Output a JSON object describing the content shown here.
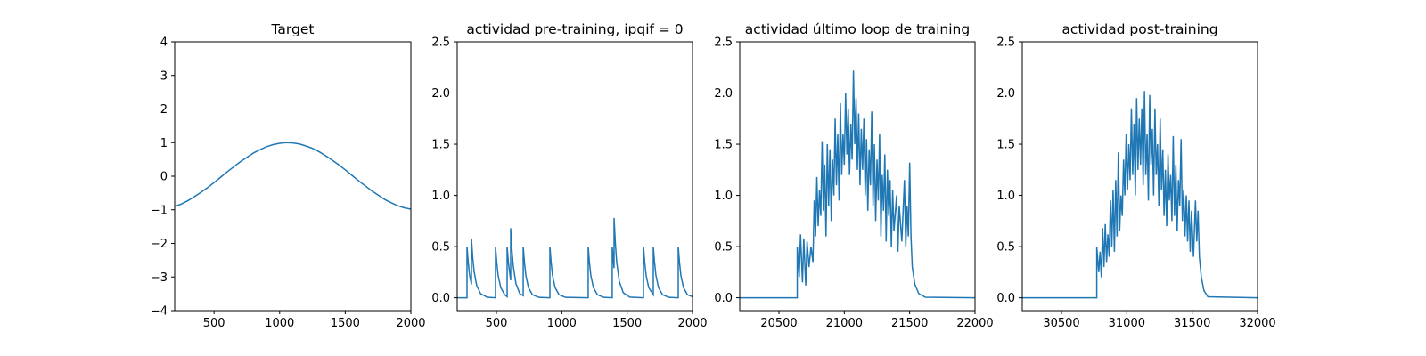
{
  "chart_data": [
    {
      "type": "line",
      "title": "Target",
      "color": "#1f77b4",
      "x": [
        200,
        250,
        300,
        350,
        400,
        450,
        500,
        550,
        600,
        650,
        700,
        750,
        800,
        850,
        900,
        950,
        1000,
        1050,
        1100,
        1150,
        1200,
        1250,
        1300,
        1350,
        1400,
        1450,
        1500,
        1550,
        1600,
        1650,
        1700,
        1750,
        1800,
        1850,
        1900,
        1950,
        2000
      ],
      "values": [
        -0.9,
        -0.83,
        -0.73,
        -0.61,
        -0.48,
        -0.34,
        -0.19,
        -0.03,
        0.13,
        0.28,
        0.43,
        0.56,
        0.69,
        0.79,
        0.88,
        0.94,
        0.98,
        1.0,
        0.99,
        0.96,
        0.9,
        0.83,
        0.73,
        0.61,
        0.48,
        0.34,
        0.19,
        0.03,
        -0.13,
        -0.28,
        -0.43,
        -0.56,
        -0.69,
        -0.79,
        -0.88,
        -0.94,
        -0.98
      ],
      "xlim": [
        200,
        2000
      ],
      "xticks": [
        500,
        1000,
        1500,
        2000
      ],
      "ylim": [
        -4,
        4
      ],
      "yticks": [
        {
          "value": -4,
          "label": "−4"
        },
        {
          "value": -3,
          "label": "−3"
        },
        {
          "value": -2,
          "label": "−2"
        },
        {
          "value": -1,
          "label": "−1"
        },
        0,
        1,
        2,
        3,
        4
      ]
    },
    {
      "type": "line",
      "title": "actividad pre-training, ipqif = 0",
      "color": "#1f77b4",
      "x": [
        200,
        275,
        275,
        285,
        295,
        309,
        309,
        319,
        329,
        349,
        379,
        429,
        493,
        493,
        503,
        513,
        533,
        563,
        582,
        582,
        592,
        609,
        609,
        619,
        629,
        649,
        679,
        705,
        705,
        715,
        725,
        745,
        775,
        825,
        909,
        909,
        919,
        929,
        949,
        979,
        1029,
        1202,
        1202,
        1212,
        1222,
        1242,
        1272,
        1322,
        1386,
        1386,
        1400,
        1400,
        1410,
        1420,
        1440,
        1470,
        1520,
        1625,
        1625,
        1635,
        1645,
        1665,
        1700,
        1700,
        1710,
        1720,
        1740,
        1770,
        1820,
        1891,
        1891,
        1901,
        1911,
        1931,
        1961,
        2000
      ],
      "values": [
        0,
        0,
        0.5,
        0.34,
        0.22,
        0.13,
        0.58,
        0.39,
        0.26,
        0.12,
        0.04,
        0.005,
        0,
        0.5,
        0.34,
        0.22,
        0.1,
        0.03,
        0.01,
        0.5,
        0.34,
        0.17,
        0.68,
        0.46,
        0.31,
        0.14,
        0.04,
        0.02,
        0.5,
        0.34,
        0.22,
        0.1,
        0.03,
        0.004,
        0,
        0.5,
        0.34,
        0.22,
        0.1,
        0.03,
        0.004,
        0,
        0.5,
        0.34,
        0.22,
        0.1,
        0.03,
        0.004,
        0,
        0.5,
        0.29,
        0.78,
        0.53,
        0.35,
        0.16,
        0.05,
        0.006,
        0,
        0.5,
        0.34,
        0.22,
        0.1,
        0.03,
        0.5,
        0.34,
        0.22,
        0.1,
        0.03,
        0.004,
        0,
        0.5,
        0.34,
        0.22,
        0.1,
        0.03,
        0.01
      ],
      "xlim": [
        200,
        2000
      ],
      "xticks": [
        500,
        1000,
        1500,
        2000
      ],
      "ylim": [
        -0.125,
        2.5
      ],
      "yticks": [
        {
          "value": 0,
          "label": "0.0"
        },
        0.5,
        {
          "value": 1,
          "label": "1.0"
        },
        1.5,
        {
          "value": 2,
          "label": "2.0"
        },
        2.5
      ]
    },
    {
      "type": "line",
      "title": "actividad último loop de training",
      "color": "#1f77b4",
      "x": [
        20200,
        20640,
        20640,
        20655,
        20665,
        20680,
        20690,
        20705,
        20715,
        20730,
        20745,
        20760,
        20770,
        20780,
        20790,
        20800,
        20810,
        20820,
        20830,
        20840,
        20850,
        20860,
        20870,
        20880,
        20890,
        20900,
        20910,
        20920,
        20930,
        20940,
        20950,
        20960,
        20970,
        20980,
        20990,
        21000,
        21010,
        21020,
        21030,
        21040,
        21050,
        21060,
        21070,
        21080,
        21090,
        21100,
        21110,
        21120,
        21130,
        21140,
        21150,
        21160,
        21170,
        21180,
        21190,
        21200,
        21210,
        21220,
        21230,
        21240,
        21250,
        21260,
        21270,
        21280,
        21290,
        21300,
        21310,
        21320,
        21330,
        21340,
        21350,
        21360,
        21370,
        21380,
        21400,
        21410,
        21420,
        21440,
        21460,
        21470,
        21480,
        21490,
        21500,
        21510,
        21520,
        21540,
        21570,
        21620,
        22000
      ],
      "values": [
        0,
        0,
        0.5,
        0.2,
        0.62,
        0.15,
        0.58,
        0.12,
        0.55,
        0.3,
        0.5,
        0.35,
        0.95,
        0.6,
        1.18,
        0.7,
        1.05,
        0.8,
        1.53,
        0.85,
        1.3,
        0.6,
        1.5,
        0.9,
        1.45,
        0.75,
        1.35,
        1.0,
        1.75,
        1.1,
        1.6,
        0.95,
        1.9,
        1.2,
        1.6,
        1.3,
        2.0,
        1.4,
        1.85,
        1.2,
        1.7,
        1.35,
        2.22,
        1.5,
        1.95,
        1.25,
        1.8,
        1.1,
        1.65,
        1.25,
        1.75,
        1.0,
        1.55,
        0.85,
        1.45,
        1.1,
        1.82,
        0.9,
        1.5,
        0.75,
        1.35,
        0.95,
        1.6,
        0.6,
        1.2,
        0.85,
        1.4,
        0.55,
        1.25,
        0.8,
        1.15,
        0.5,
        1.05,
        0.65,
        1.0,
        0.45,
        0.9,
        0.55,
        1.15,
        0.5,
        0.9,
        0.6,
        1.32,
        0.6,
        0.3,
        0.13,
        0.04,
        0.005,
        0
      ],
      "xlim": [
        20200,
        22000
      ],
      "xticks": [
        20500,
        21000,
        21500,
        22000
      ],
      "ylim": [
        -0.125,
        2.5
      ],
      "yticks": [
        {
          "value": 0,
          "label": "0.0"
        },
        0.5,
        {
          "value": 1,
          "label": "1.0"
        },
        1.5,
        {
          "value": 2,
          "label": "2.0"
        },
        2.5
      ]
    },
    {
      "type": "line",
      "title": "actividad post-training",
      "color": "#1f77b4",
      "x": [
        30200,
        30770,
        30770,
        30785,
        30795,
        30805,
        30815,
        30825,
        30835,
        30845,
        30855,
        30865,
        30875,
        30885,
        30895,
        30905,
        30915,
        30925,
        30935,
        30945,
        30955,
        30965,
        30975,
        30985,
        30995,
        31005,
        31015,
        31025,
        31035,
        31045,
        31055,
        31065,
        31075,
        31085,
        31095,
        31105,
        31115,
        31125,
        31135,
        31145,
        31155,
        31165,
        31175,
        31185,
        31195,
        31205,
        31215,
        31225,
        31235,
        31245,
        31255,
        31265,
        31275,
        31285,
        31295,
        31305,
        31315,
        31325,
        31335,
        31345,
        31355,
        31365,
        31375,
        31385,
        31395,
        31405,
        31415,
        31425,
        31435,
        31445,
        31455,
        31465,
        31475,
        31485,
        31495,
        31510,
        31525,
        31535,
        31545,
        31555,
        31570,
        31590,
        31620,
        32000
      ],
      "values": [
        0,
        0,
        0.5,
        0.25,
        0.45,
        0.2,
        0.68,
        0.3,
        0.72,
        0.35,
        0.62,
        0.4,
        0.95,
        0.5,
        1.05,
        0.45,
        1.15,
        0.6,
        1.42,
        0.65,
        1.0,
        0.8,
        1.35,
        1.0,
        1.6,
        1.05,
        1.5,
        1.15,
        1.85,
        1.2,
        1.7,
        1.0,
        1.95,
        1.25,
        1.75,
        1.3,
        1.85,
        1.1,
        2.02,
        1.2,
        1.6,
        0.95,
        1.98,
        1.3,
        1.65,
        1.0,
        1.85,
        1.2,
        1.5,
        0.9,
        1.75,
        1.05,
        1.45,
        0.8,
        1.25,
        0.7,
        1.4,
        0.95,
        1.2,
        0.75,
        1.58,
        0.8,
        1.3,
        0.65,
        1.15,
        0.9,
        1.55,
        0.75,
        1.05,
        0.6,
        1.0,
        0.55,
        0.95,
        0.45,
        0.85,
        0.4,
        0.95,
        0.55,
        0.85,
        0.4,
        0.2,
        0.07,
        0.01,
        0
      ],
      "xlim": [
        30200,
        32000
      ],
      "xticks": [
        30500,
        31000,
        31500,
        32000
      ],
      "ylim": [
        -0.125,
        2.5
      ],
      "yticks": [
        {
          "value": 0,
          "label": "0.0"
        },
        0.5,
        {
          "value": 1,
          "label": "1.0"
        },
        1.5,
        {
          "value": 2,
          "label": "2.0"
        },
        2.5
      ]
    }
  ]
}
